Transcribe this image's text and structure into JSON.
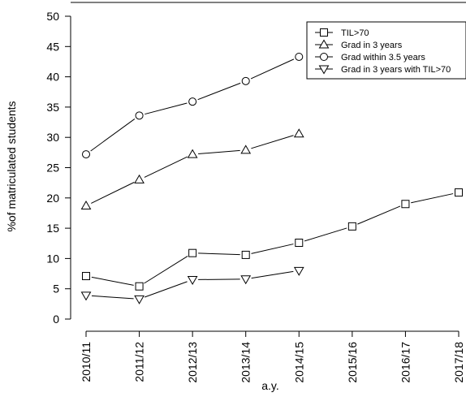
{
  "chart_data": {
    "type": "line",
    "categories": [
      "2010/11",
      "2011/12",
      "2012/13",
      "2013/14",
      "2014/15",
      "2015/16",
      "2016/17",
      "2017/18"
    ],
    "xlabel": "a.y.",
    "ylabel": "%of matriculated students",
    "ylim": [
      0,
      50
    ],
    "yticks": [
      0,
      5,
      10,
      15,
      20,
      25,
      30,
      35,
      40,
      45,
      50
    ],
    "grid": false,
    "legend_position": "top-right",
    "series": [
      {
        "name": "TIL>70",
        "marker": "square",
        "values": [
          7.1,
          5.4,
          10.9,
          10.6,
          12.6,
          15.3,
          19.0,
          20.9
        ]
      },
      {
        "name": "Grad in 3 years",
        "marker": "triangle-up",
        "values": [
          18.7,
          23.0,
          27.2,
          27.9,
          30.6,
          null,
          null,
          null
        ]
      },
      {
        "name": "Grad within 3.5 years",
        "marker": "circle",
        "values": [
          27.2,
          33.6,
          35.9,
          39.3,
          43.3,
          null,
          null,
          null
        ]
      },
      {
        "name": "Grad in 3 years with TIL>70",
        "marker": "triangle-down",
        "values": [
          3.9,
          3.3,
          6.5,
          6.6,
          8.0,
          null,
          null,
          null
        ]
      }
    ]
  }
}
